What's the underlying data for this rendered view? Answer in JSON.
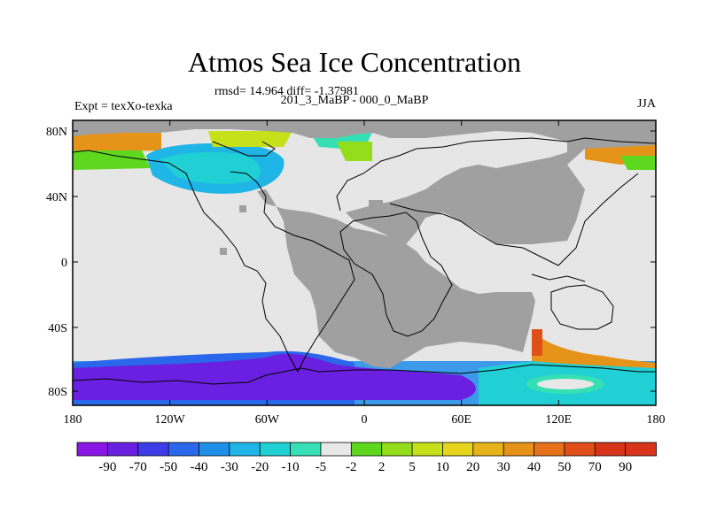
{
  "title": "Atmos Sea Ice Concentration",
  "stats": "rmsd= 14.964 diff= -1.37981",
  "experiment": "Expt = texXo-texka",
  "period": "201_3_MaBP - 000_0_MaBP",
  "season": "JJA",
  "lat_labels": [
    "80N",
    "40N",
    "0",
    "40S",
    "80S"
  ],
  "lon_labels": [
    "180",
    "120W",
    "60W",
    "0",
    "60E",
    "120E",
    "180"
  ],
  "colorbar": {
    "levels": [
      "-90",
      "-70",
      "-50",
      "-40",
      "-30",
      "-20",
      "-10",
      "-5",
      "-2",
      "2",
      "5",
      "10",
      "20",
      "30",
      "40",
      "50",
      "70",
      "90"
    ],
    "colors": [
      "#8a16e6",
      "#6a20e0",
      "#3d3de8",
      "#2a67ea",
      "#1f8fe8",
      "#1fb5e6",
      "#20d0d4",
      "#36e0b4",
      "#e8e8e8",
      "#5ed81f",
      "#93dd1a",
      "#c6e01a",
      "#e6d51a",
      "#e6b31a",
      "#e6931a",
      "#e6711a",
      "#e04e1a",
      "#d8341a"
    ]
  },
  "colors": {
    "land": "#a0a0a0",
    "ocean_nochange": "#e6e6e6",
    "coast": "#000000"
  }
}
